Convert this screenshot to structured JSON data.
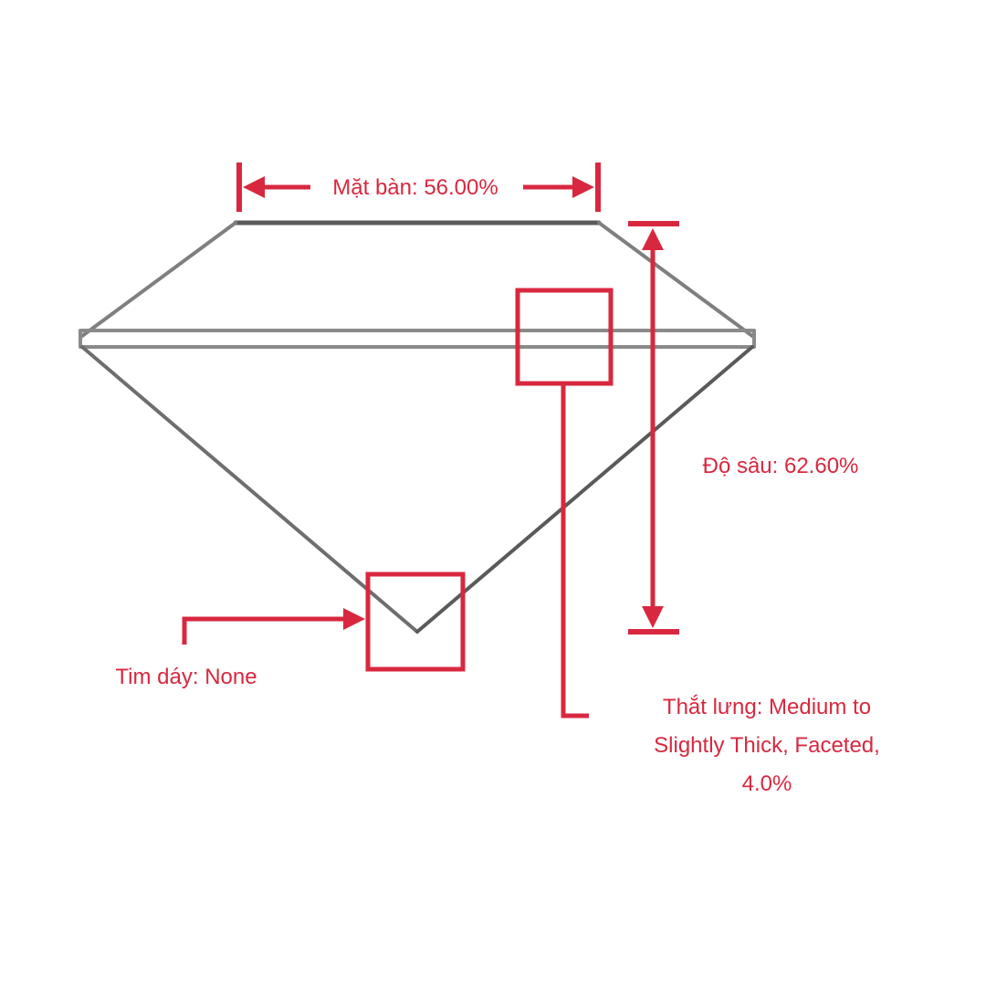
{
  "colors": {
    "accent": "#d8283f",
    "outline": "#7a7a7a",
    "outline_dark": "#4a4a4a",
    "background": "#ffffff"
  },
  "labels": {
    "table": "Mặt bàn: 56.00%",
    "depth": "Độ sâu: 62.60%",
    "culet": "Tim dáy: None",
    "girdle_line1": "Thắt lưng: Medium to",
    "girdle_line2": "Slightly Thick, Faceted,",
    "girdle_line3": "4.0%"
  }
}
